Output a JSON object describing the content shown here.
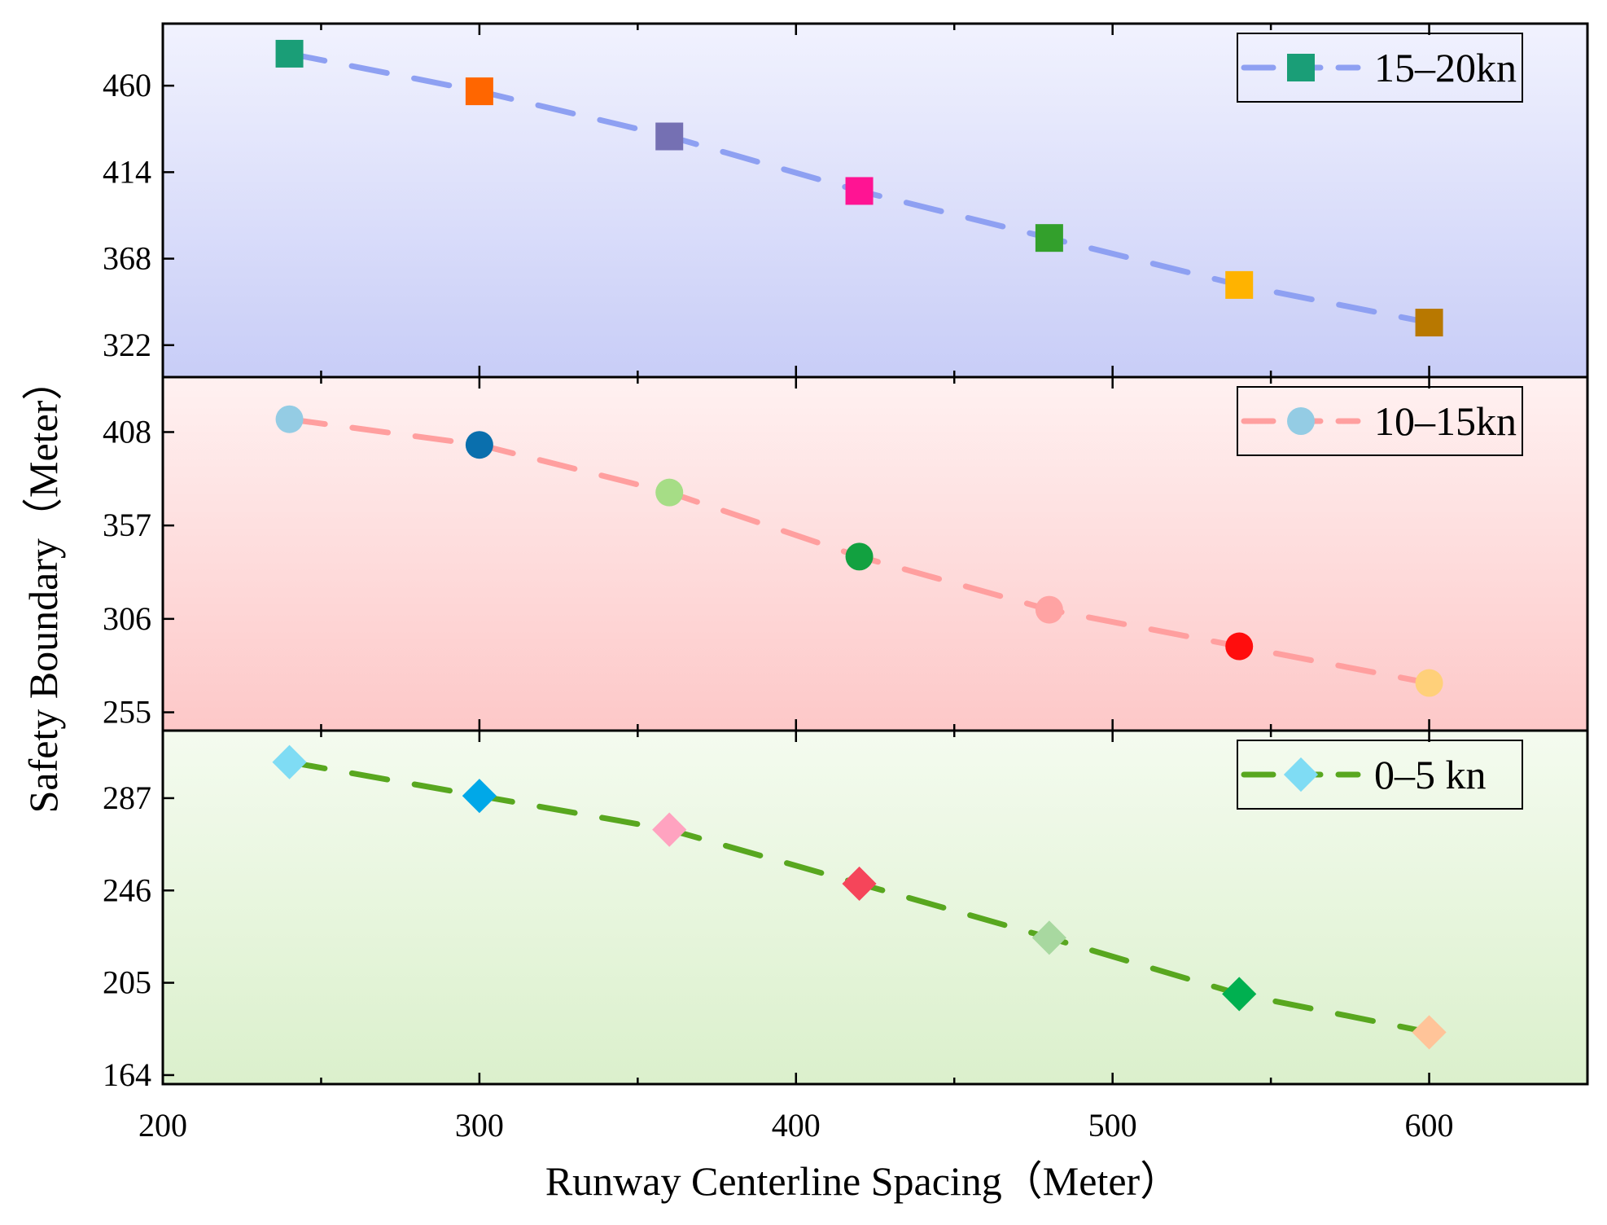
{
  "chart_data": {
    "type": "line",
    "layout": "stacked-panels",
    "xlabel": "Runway Centerline Spacing（Meter）",
    "ylabel": "Safety Boundary（Meter）",
    "x_axis": {
      "lim": [
        200,
        650
      ],
      "ticks": [
        200,
        300,
        400,
        500,
        600
      ],
      "tick_labels": [
        "200",
        "300",
        "400",
        "500",
        "600"
      ]
    },
    "panels": [
      {
        "legend": "15–20kn",
        "marker": "square",
        "line_color": "#8ea0f2",
        "bg_top": "#f1f2fe",
        "bg_bottom": "#c8cdf7",
        "ylim": [
          305,
          493
        ],
        "yticks": [
          322,
          368,
          414,
          460
        ],
        "ytick_labels": [
          "322",
          "368",
          "414",
          "460"
        ],
        "x": [
          240,
          300,
          360,
          420,
          480,
          540,
          600
        ],
        "values": [
          477,
          457,
          433,
          404,
          379,
          354,
          334
        ],
        "point_colors": [
          "#1a9e77",
          "#ff6600",
          "#7570b3",
          "#ff1493",
          "#33a02c",
          "#ffb300",
          "#b87800"
        ]
      },
      {
        "legend": "10–15kn",
        "marker": "circle",
        "line_color": "#ff9f9f",
        "bg_top": "#fff1f1",
        "bg_bottom": "#fdc8c8",
        "ylim": [
          245,
          438
        ],
        "yticks": [
          255,
          306,
          357,
          408
        ],
        "ytick_labels": [
          "255",
          "306",
          "357",
          "408"
        ],
        "x": [
          240,
          300,
          360,
          420,
          480,
          540,
          600
        ],
        "values": [
          415,
          401,
          375,
          340,
          311,
          291,
          271
        ],
        "point_colors": [
          "#94cce4",
          "#0a6fad",
          "#a6dd86",
          "#12a140",
          "#ffa3a3",
          "#ff0d0d",
          "#ffd07a"
        ]
      },
      {
        "legend": "0–5 kn",
        "marker": "diamond",
        "line_color": "#58a71f",
        "bg_top": "#f4fbef",
        "bg_bottom": "#dbf0cc",
        "ylim": [
          160,
          317
        ],
        "yticks": [
          164,
          205,
          246,
          287
        ],
        "ytick_labels": [
          "164",
          "205",
          "246",
          "287"
        ],
        "x": [
          240,
          300,
          360,
          420,
          480,
          540,
          600
        ],
        "values": [
          303,
          288,
          273,
          249,
          225,
          200,
          183
        ],
        "point_colors": [
          "#7fdcf4",
          "#00a8e8",
          "#ffa3c0",
          "#f5455a",
          "#a8d8a0",
          "#00b050",
          "#ffc499"
        ]
      }
    ]
  }
}
